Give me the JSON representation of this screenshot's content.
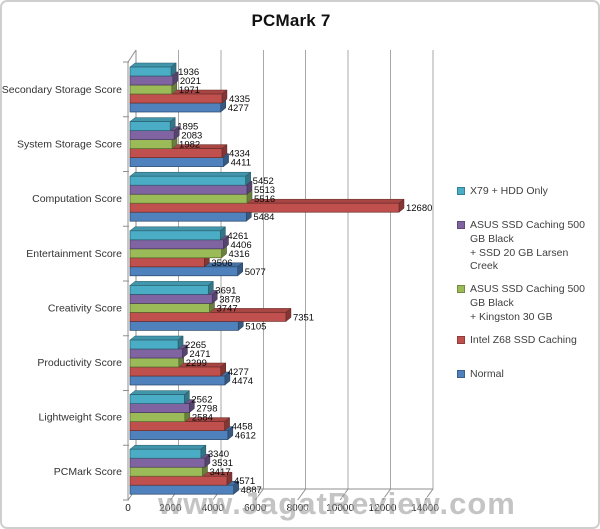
{
  "watermark": "www.JagatReview.com",
  "chart_data": {
    "type": "bar",
    "orientation": "horizontal",
    "title": "PCMark 7",
    "grid": true,
    "legend_position": "right",
    "effect_3d": true,
    "categories": [
      "Secondary Storage Score",
      "System Storage Score",
      "Computation Score",
      "Entertainment Score",
      "Creativity Score",
      "Productivity Score",
      "Lightweight Score",
      "PCMark Score"
    ],
    "series": [
      {
        "name": "X79 + HDD Only",
        "legend_lines": [
          "X79 + HDD Only"
        ],
        "color": "#4BACC6",
        "values": [
          1936,
          1895,
          5452,
          4261,
          3691,
          2265,
          2562,
          3340
        ]
      },
      {
        "name": "ASUS SSD Caching 500 GB Black + SSD 20 GB Larsen Creek",
        "legend_lines": [
          "ASUS SSD Caching 500 GB Black",
          "+ SSD 20 GB Larsen Creek"
        ],
        "color": "#8064A2",
        "values": [
          2021,
          2083,
          5513,
          4406,
          3878,
          2471,
          2798,
          3531
        ]
      },
      {
        "name": "ASUS SSD Caching 500 GB Black + Kingston 30 GB",
        "legend_lines": [
          "ASUS SSD Caching 500 GB Black",
          "+ Kingston 30 GB"
        ],
        "color": "#9BBB59",
        "values": [
          1971,
          1982,
          5516,
          4316,
          3747,
          2299,
          2584,
          3417
        ]
      },
      {
        "name": "Intel Z68 SSD Caching",
        "legend_lines": [
          "Intel Z68 SSD Caching"
        ],
        "color": "#C0504D",
        "values": [
          4335,
          4334,
          12680,
          3506,
          7351,
          4277,
          4458,
          4571
        ]
      },
      {
        "name": "Normal",
        "legend_lines": [
          "Normal"
        ],
        "color": "#4F81BD",
        "values": [
          4277,
          4411,
          5484,
          5077,
          5105,
          4474,
          4612,
          4887
        ]
      }
    ],
    "x_axis": {
      "min": 0,
      "max": 14000,
      "tick_interval": 2000,
      "ticks": [
        0,
        2000,
        4000,
        6000,
        8000,
        10000,
        12000,
        14000
      ]
    }
  }
}
